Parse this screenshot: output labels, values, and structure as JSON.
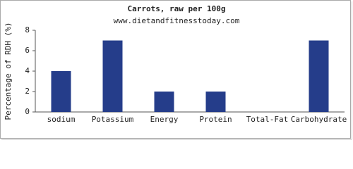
{
  "chart_data": {
    "type": "bar",
    "title": "Carrots, raw per 100g",
    "subtitle": "www.dietandfitnesstoday.com",
    "y_label": "Percentage of RDH (%)",
    "categories": [
      "sodium",
      "Potassium",
      "Energy",
      "Protein",
      "Total-Fat",
      "Carbohydrate"
    ],
    "values": [
      4,
      7,
      2,
      2,
      0,
      7
    ],
    "color": "#253d8a",
    "ylim": [
      0,
      8
    ],
    "yticks": [
      0,
      2,
      4,
      6,
      8
    ],
    "grid": false
  }
}
